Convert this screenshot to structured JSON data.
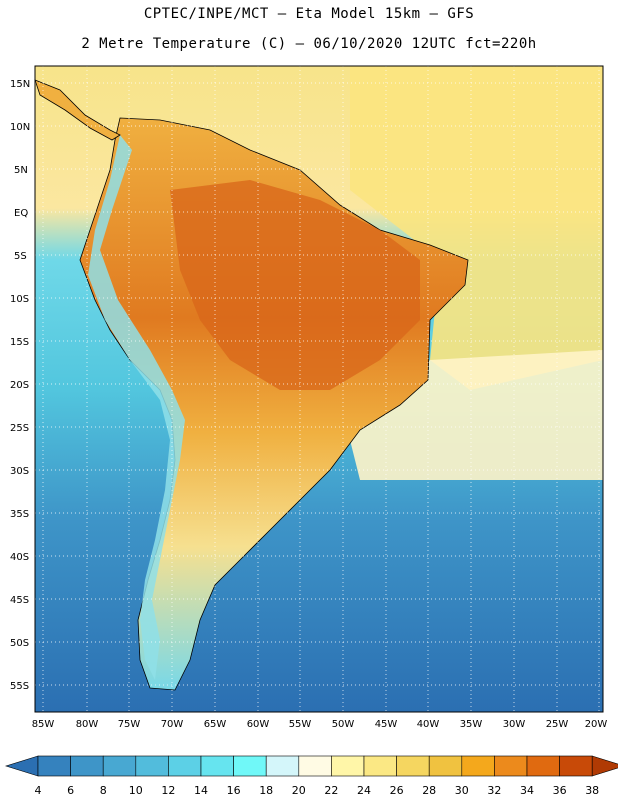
{
  "title": {
    "line1": "CPTEC/INPE/MCT –  Eta Model 15km – GFS",
    "line2": "2 Metre Temperature (C) – 06/10/2020 12UTC fct=220h"
  },
  "map": {
    "lat_labels": [
      "15N",
      "10N",
      "5N",
      "EQ",
      "5S",
      "10S",
      "15S",
      "20S",
      "25S",
      "30S",
      "35S",
      "40S",
      "45S",
      "50S",
      "55S"
    ],
    "lon_labels": [
      "85W",
      "80W",
      "75W",
      "70W",
      "65W",
      "60W",
      "55W",
      "50W",
      "45W",
      "40W",
      "35W",
      "30W",
      "25W",
      "20W"
    ],
    "ocean_color": "#3aa0c8",
    "land_color": "#e8a030"
  },
  "colorbar": {
    "labels": [
      "4",
      "6",
      "8",
      "10",
      "12",
      "14",
      "16",
      "18",
      "20",
      "22",
      "24",
      "26",
      "28",
      "30",
      "32",
      "34",
      "36",
      "38"
    ],
    "colors": [
      "#2b6fb2",
      "#3582be",
      "#3e95c8",
      "#48a8d2",
      "#52bcdc",
      "#5cd0e6",
      "#66e4ef",
      "#70f8f8",
      "#d4f6fa",
      "#fffbe4",
      "#fff6a8",
      "#fbe884",
      "#f5d660",
      "#f0c240",
      "#f4a81c",
      "#ec8a1c",
      "#e06a10",
      "#c84a08",
      "#b03a04"
    ]
  }
}
